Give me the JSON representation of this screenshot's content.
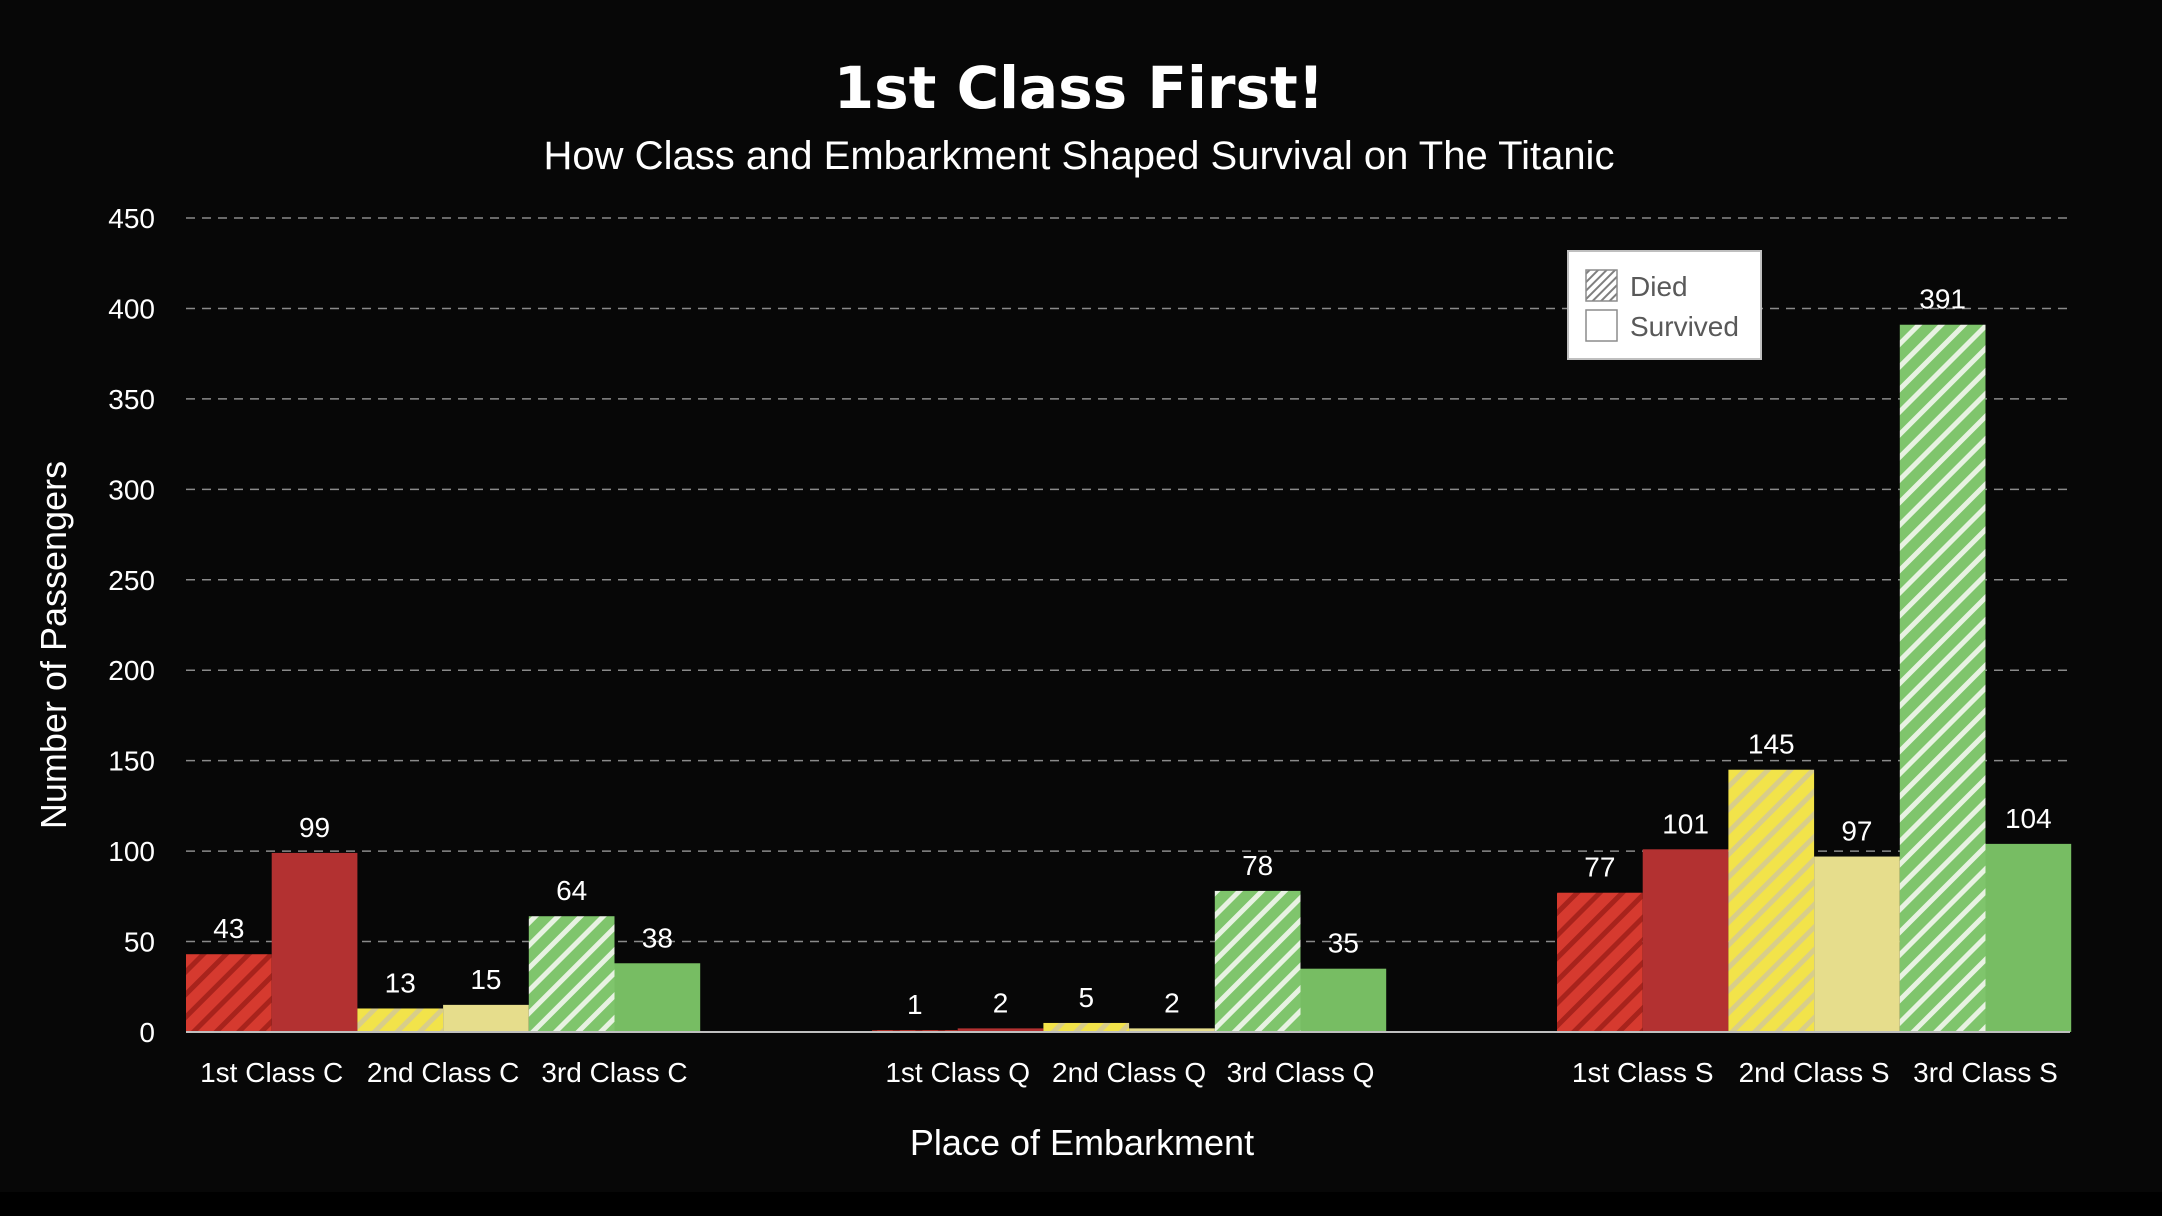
{
  "chart_data": {
    "type": "bar",
    "title": "1st Class First!",
    "subtitle": "How Class and Embarkment Shaped Survival on The Titanic",
    "xlabel": "Place of Embarkment",
    "ylabel": "Number of Passengers",
    "ylim": [
      0,
      450
    ],
    "yticks": [
      0,
      50,
      100,
      150,
      200,
      250,
      300,
      350,
      400,
      450
    ],
    "grid": true,
    "legend_position": "top-right",
    "legend": [
      {
        "name": "Died",
        "pattern": "hatched"
      },
      {
        "name": "Survived",
        "pattern": "solid"
      }
    ],
    "groups": [
      {
        "embarkment": "C",
        "categories": [
          {
            "label": "1st Class C",
            "died": 43,
            "survived": 99,
            "class": "1st"
          },
          {
            "label": "2nd Class C",
            "died": 13,
            "survived": 15,
            "class": "2nd"
          },
          {
            "label": "3rd Class C",
            "died": 64,
            "survived": 38,
            "class": "3rd"
          }
        ]
      },
      {
        "embarkment": "Q",
        "categories": [
          {
            "label": "1st Class Q",
            "died": 1,
            "survived": 2,
            "class": "1st"
          },
          {
            "label": "2nd Class Q",
            "died": 5,
            "survived": 2,
            "class": "2nd"
          },
          {
            "label": "3rd Class Q",
            "died": 78,
            "survived": 35,
            "class": "3rd"
          }
        ]
      },
      {
        "embarkment": "S",
        "categories": [
          {
            "label": "1st Class S",
            "died": 77,
            "survived": 101,
            "class": "1st"
          },
          {
            "label": "2nd Class S",
            "died": 145,
            "survived": 97,
            "class": "2nd"
          },
          {
            "label": "3rd Class S",
            "died": 391,
            "survived": 104,
            "class": "3rd"
          }
        ]
      }
    ],
    "colors": {
      "1st": {
        "died": "#d63a2f",
        "died_stripe": "#a8231c",
        "survived": "#b33131"
      },
      "2nd": {
        "died": "#f2e34a",
        "died_stripe": "#d8cd8a",
        "survived": "#e6dd8c"
      },
      "3rd": {
        "died": "#7fc56c",
        "died_stripe": "#e8f2e2",
        "survived": "#77bd63"
      }
    }
  }
}
